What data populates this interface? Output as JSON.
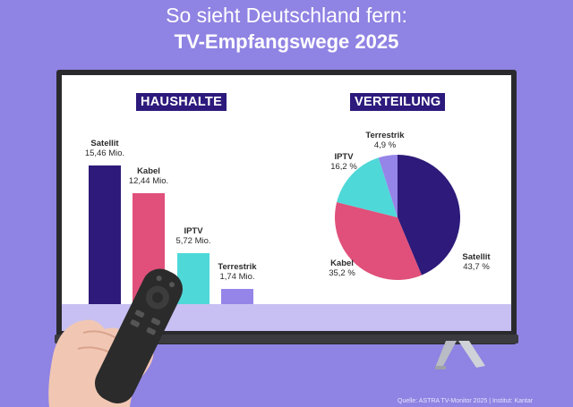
{
  "header": {
    "line1": "So sieht Deutschland fern:",
    "line2": "TV-Empfangswege 2025"
  },
  "panels": {
    "bar_title": "HAUSHALTE",
    "pie_title": "VERTEILUNG"
  },
  "source": "Quelle: ASTRA TV-Monitor 2025 | Institut: Kantar",
  "chart_data": [
    {
      "type": "bar",
      "title": "HAUSHALTE",
      "categories": [
        "Satellit",
        "Kabel",
        "IPTV",
        "Terrestrik"
      ],
      "values": [
        15.46,
        12.44,
        5.72,
        1.74
      ],
      "value_labels": [
        "15,46 Mio.",
        "12,44 Mio.",
        "5,72 Mio.",
        "1,74 Mio."
      ],
      "ylim": [
        0,
        16
      ],
      "colors": [
        "#2e1a7a",
        "#e0507a",
        "#4fd8d8",
        "#9585e8"
      ]
    },
    {
      "type": "pie",
      "title": "VERTEILUNG",
      "categories": [
        "Satellit",
        "Kabel",
        "IPTV",
        "Terrestrik"
      ],
      "values": [
        43.7,
        35.2,
        16.2,
        4.9
      ],
      "value_labels": [
        "43,7 %",
        "35,2 %",
        "16,2 %",
        "4,9 %"
      ],
      "colors": [
        "#2e1a7a",
        "#e0507a",
        "#4fd8d8",
        "#9585e8"
      ]
    }
  ],
  "colors": {
    "background": "#8f83e3",
    "title_box": "#2d1a7c",
    "screen_stripe": "#c8c0f2"
  }
}
